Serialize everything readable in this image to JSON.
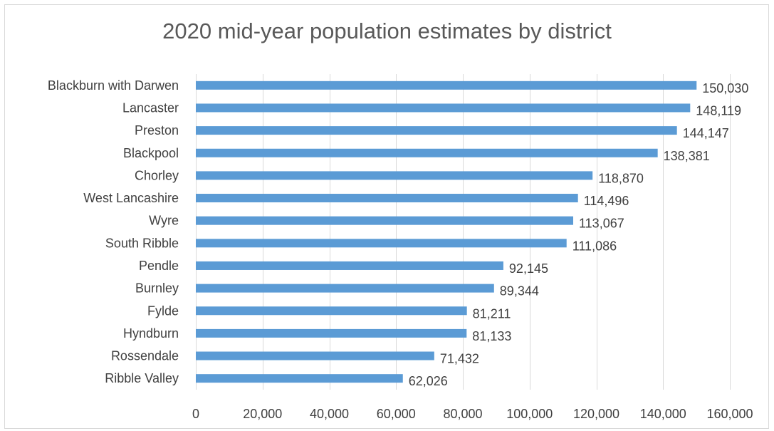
{
  "chart_data": {
    "type": "bar",
    "orientation": "horizontal",
    "title": "2020 mid-year population estimates by district",
    "categories": [
      "Blackburn with Darwen",
      "Lancaster",
      "Preston",
      "Blackpool",
      "Chorley",
      "West Lancashire",
      "Wyre",
      "South Ribble",
      "Pendle",
      "Burnley",
      "Fylde",
      "Hyndburn",
      "Rossendale",
      "Ribble Valley"
    ],
    "values": [
      150030,
      148119,
      144147,
      138381,
      118870,
      114496,
      113067,
      111086,
      92145,
      89344,
      81211,
      81133,
      71432,
      62026
    ],
    "data_labels": [
      "150,030",
      "148,119",
      "144,147",
      "138,381",
      "118,870",
      "114,496",
      "113,067",
      "111,086",
      "92,145",
      "89,344",
      "81,211",
      "81,133",
      "71,432",
      "62,026"
    ],
    "x_ticks": [
      0,
      20000,
      40000,
      60000,
      80000,
      100000,
      120000,
      140000,
      160000
    ],
    "x_tick_labels": [
      "0",
      "20,000",
      "40,000",
      "60,000",
      "80,000",
      "100,000",
      "120,000",
      "140,000",
      "160,000"
    ],
    "xlim": [
      0,
      160000
    ],
    "xlabel": "",
    "ylabel": "",
    "grid": true,
    "legend": "none",
    "bar_color": "#5b9bd5"
  }
}
